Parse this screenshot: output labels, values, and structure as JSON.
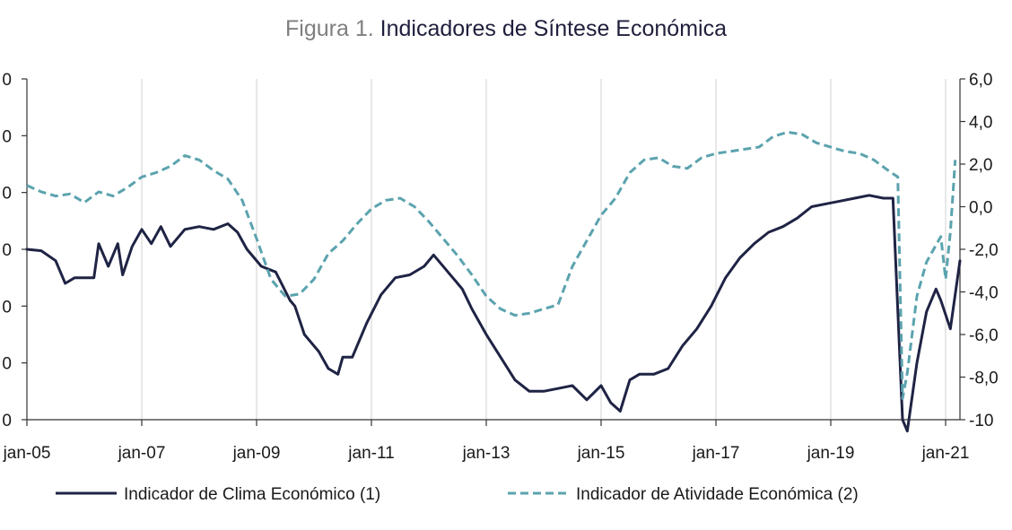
{
  "title": {
    "prefix": "Figura 1.",
    "main": "Indicadores de Síntese Económica"
  },
  "colors": {
    "clima": "#1f2344",
    "atividade": "#5ba3ae",
    "axis": "#333333",
    "grid": "#d0d0d0"
  },
  "chart_data": {
    "type": "line",
    "title": "Figura 1. Indicadores de Síntese Económica",
    "x_tick_labels": [
      "jan-05",
      "jan-07",
      "jan-09",
      "jan-11",
      "jan-13",
      "jan-15",
      "jan-17",
      "jan-19",
      "jan-21"
    ],
    "x_range": [
      "2005-01",
      "2021-04"
    ],
    "left_axis": {
      "ylim": [
        -6,
        6
      ],
      "tick_labels": [
        "0",
        "0",
        "0",
        "0",
        "0",
        "0",
        "0"
      ]
    },
    "right_axis": {
      "ylim": [
        -10,
        6
      ],
      "tick_labels": [
        "6,0",
        "4,0",
        "2,0",
        "0,0",
        "-2,0",
        "-4,0",
        "-6,0",
        "-8,0",
        "-10"
      ]
    },
    "grid": "vertical",
    "legend_position": "bottom",
    "series": [
      {
        "name": "Indicador de Clima Económico (1)",
        "axis": "left",
        "style": "solid",
        "points": [
          [
            "2005-01",
            0.0
          ],
          [
            "2005-04",
            -0.05
          ],
          [
            "2005-07",
            -0.4
          ],
          [
            "2005-09",
            -1.2
          ],
          [
            "2005-11",
            -1.0
          ],
          [
            "2006-03",
            -1.0
          ],
          [
            "2006-04",
            0.2
          ],
          [
            "2006-06",
            -0.6
          ],
          [
            "2006-08",
            0.2
          ],
          [
            "2006-09",
            -0.9
          ],
          [
            "2006-11",
            0.1
          ],
          [
            "2007-01",
            0.7
          ],
          [
            "2007-03",
            0.2
          ],
          [
            "2007-05",
            0.8
          ],
          [
            "2007-07",
            0.1
          ],
          [
            "2007-10",
            0.7
          ],
          [
            "2008-01",
            0.8
          ],
          [
            "2008-04",
            0.7
          ],
          [
            "2008-07",
            0.9
          ],
          [
            "2008-09",
            0.6
          ],
          [
            "2008-11",
            0.0
          ],
          [
            "2009-02",
            -0.6
          ],
          [
            "2009-05",
            -0.8
          ],
          [
            "2009-08",
            -1.8
          ],
          [
            "2009-09",
            -2.0
          ],
          [
            "2009-11",
            -3.0
          ],
          [
            "2010-02",
            -3.6
          ],
          [
            "2010-04",
            -4.2
          ],
          [
            "2010-06",
            -4.4
          ],
          [
            "2010-07",
            -3.8
          ],
          [
            "2010-09",
            -3.8
          ],
          [
            "2010-12",
            -2.6
          ],
          [
            "2011-03",
            -1.6
          ],
          [
            "2011-06",
            -1.0
          ],
          [
            "2011-09",
            -0.9
          ],
          [
            "2011-12",
            -0.6
          ],
          [
            "2012-02",
            -0.2
          ],
          [
            "2012-05",
            -0.8
          ],
          [
            "2012-08",
            -1.4
          ],
          [
            "2012-10",
            -2.1
          ],
          [
            "2013-01",
            -3.0
          ],
          [
            "2013-04",
            -3.8
          ],
          [
            "2013-07",
            -4.6
          ],
          [
            "2013-10",
            -5.0
          ],
          [
            "2014-01",
            -5.0
          ],
          [
            "2014-04",
            -4.9
          ],
          [
            "2014-07",
            -4.8
          ],
          [
            "2014-10",
            -5.3
          ],
          [
            "2015-01",
            -4.8
          ],
          [
            "2015-03",
            -5.4
          ],
          [
            "2015-05",
            -5.7
          ],
          [
            "2015-07",
            -4.6
          ],
          [
            "2015-09",
            -4.4
          ],
          [
            "2015-12",
            -4.4
          ],
          [
            "2016-03",
            -4.2
          ],
          [
            "2016-06",
            -3.4
          ],
          [
            "2016-09",
            -2.8
          ],
          [
            "2016-12",
            -2.0
          ],
          [
            "2017-03",
            -1.0
          ],
          [
            "2017-06",
            -0.3
          ],
          [
            "2017-09",
            0.2
          ],
          [
            "2017-12",
            0.6
          ],
          [
            "2018-03",
            0.8
          ],
          [
            "2018-06",
            1.1
          ],
          [
            "2018-09",
            1.5
          ],
          [
            "2018-12",
            1.6
          ],
          [
            "2019-03",
            1.7
          ],
          [
            "2019-06",
            1.8
          ],
          [
            "2019-09",
            1.9
          ],
          [
            "2019-12",
            1.8
          ],
          [
            "2020-02",
            1.8
          ],
          [
            "2020-04",
            -6.0
          ],
          [
            "2020-05",
            -6.4
          ],
          [
            "2020-07",
            -4.0
          ],
          [
            "2020-09",
            -2.2
          ],
          [
            "2020-11",
            -1.4
          ],
          [
            "2020-12",
            -1.8
          ],
          [
            "2021-02",
            -2.8
          ],
          [
            "2021-04",
            -0.4
          ]
        ]
      },
      {
        "name": "Indicador de Atividade Económica (2)",
        "axis": "right",
        "style": "dashed",
        "points": [
          [
            "2005-01",
            1.0
          ],
          [
            "2005-04",
            0.7
          ],
          [
            "2005-07",
            0.5
          ],
          [
            "2005-10",
            0.6
          ],
          [
            "2006-01",
            0.2
          ],
          [
            "2006-04",
            0.7
          ],
          [
            "2006-07",
            0.5
          ],
          [
            "2006-10",
            0.9
          ],
          [
            "2007-01",
            1.4
          ],
          [
            "2007-04",
            1.6
          ],
          [
            "2007-07",
            1.9
          ],
          [
            "2007-10",
            2.4
          ],
          [
            "2008-01",
            2.2
          ],
          [
            "2008-04",
            1.7
          ],
          [
            "2008-07",
            1.3
          ],
          [
            "2008-10",
            0.3
          ],
          [
            "2009-01",
            -1.5
          ],
          [
            "2009-04",
            -3.4
          ],
          [
            "2009-07",
            -4.2
          ],
          [
            "2009-10",
            -4.1
          ],
          [
            "2010-01",
            -3.4
          ],
          [
            "2010-04",
            -2.2
          ],
          [
            "2010-07",
            -1.6
          ],
          [
            "2010-10",
            -0.8
          ],
          [
            "2011-01",
            -0.1
          ],
          [
            "2011-04",
            0.3
          ],
          [
            "2011-07",
            0.4
          ],
          [
            "2011-10",
            0.0
          ],
          [
            "2012-01",
            -0.7
          ],
          [
            "2012-04",
            -1.5
          ],
          [
            "2012-07",
            -2.3
          ],
          [
            "2012-10",
            -3.2
          ],
          [
            "2013-01",
            -4.2
          ],
          [
            "2013-04",
            -4.8
          ],
          [
            "2013-07",
            -5.1
          ],
          [
            "2013-10",
            -5.0
          ],
          [
            "2014-01",
            -4.8
          ],
          [
            "2014-04",
            -4.6
          ],
          [
            "2014-07",
            -2.8
          ],
          [
            "2014-10",
            -1.6
          ],
          [
            "2015-01",
            -0.4
          ],
          [
            "2015-04",
            0.4
          ],
          [
            "2015-07",
            1.6
          ],
          [
            "2015-10",
            2.2
          ],
          [
            "2016-01",
            2.3
          ],
          [
            "2016-04",
            1.9
          ],
          [
            "2016-07",
            1.8
          ],
          [
            "2016-10",
            2.3
          ],
          [
            "2017-01",
            2.5
          ],
          [
            "2017-04",
            2.6
          ],
          [
            "2017-07",
            2.7
          ],
          [
            "2017-10",
            2.8
          ],
          [
            "2018-01",
            3.3
          ],
          [
            "2018-04",
            3.5
          ],
          [
            "2018-07",
            3.4
          ],
          [
            "2018-10",
            3.0
          ],
          [
            "2019-01",
            2.8
          ],
          [
            "2019-04",
            2.6
          ],
          [
            "2019-07",
            2.5
          ],
          [
            "2019-10",
            2.2
          ],
          [
            "2020-01",
            1.7
          ],
          [
            "2020-03",
            1.4
          ],
          [
            "2020-04",
            -9.0
          ],
          [
            "2020-05",
            -7.8
          ],
          [
            "2020-07",
            -4.2
          ],
          [
            "2020-09",
            -2.6
          ],
          [
            "2020-11",
            -1.8
          ],
          [
            "2020-12",
            -1.4
          ],
          [
            "2021-01",
            -3.4
          ],
          [
            "2021-02",
            -1.2
          ],
          [
            "2021-03",
            2.2
          ]
        ]
      }
    ]
  }
}
